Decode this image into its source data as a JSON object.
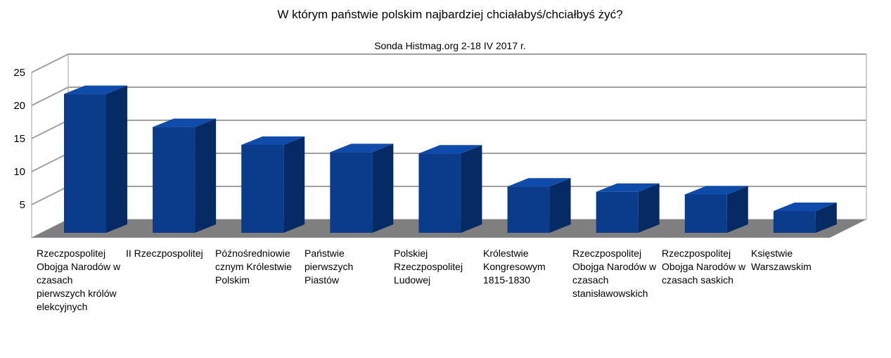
{
  "chart_data": {
    "type": "bar",
    "title": "W którym państwie polskim najbardziej chciałabyś/chciałbyś żyć?",
    "subtitle": "Sonda Histmag.org 2-18 IV 2017 r.",
    "xlabel": "",
    "ylabel": "",
    "ylim": [
      0,
      25
    ],
    "yticks": [
      5,
      10,
      15,
      20,
      25
    ],
    "grid": true,
    "style": "3d-bars",
    "categories": [
      "Rzeczpospolitej Obojga Narodów w czasach pierwszych królów elekcyjnych",
      "II Rzeczpospolitej",
      "Późnośredniowie cznym Królestwie Polskim",
      "Państwie pierwszych Piastów",
      "Polskiej Rzeczpospolitej Ludowej",
      "Królestwie Kongresowym 1815-1830",
      "Rzeczpospolitej Obojga Narodów w czasach stanisławowskich",
      "Rzeczpospolitej Obojga Narodów w czasach saskich",
      "Księstwie Warszawskim"
    ],
    "values": [
      21,
      16,
      13.3,
      12.2,
      12,
      7,
      6.2,
      5.8,
      3.3
    ]
  },
  "colors": {
    "bar_front": "#0b3c8c",
    "bar_side": "#062a63",
    "bar_top": "#0e4bab",
    "floor": "#7f7f7f",
    "grid": "#a0a0a0"
  }
}
